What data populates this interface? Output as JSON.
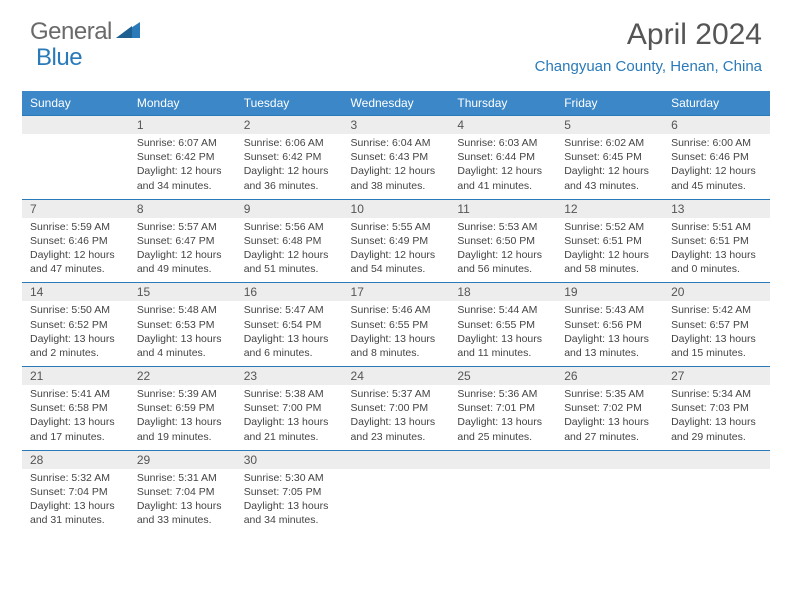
{
  "logo": {
    "general": "General",
    "blue": "Blue"
  },
  "title": "April 2024",
  "location": "Changyuan County, Henan, China",
  "colors": {
    "header_bg": "#3b87c8",
    "accent": "#2a7ab9",
    "daynum_bg": "#ededed",
    "text": "#444444",
    "title_text": "#555555"
  },
  "weekdays": [
    "Sunday",
    "Monday",
    "Tuesday",
    "Wednesday",
    "Thursday",
    "Friday",
    "Saturday"
  ],
  "days": {
    "1": {
      "sr": "6:07 AM",
      "ss": "6:42 PM",
      "dl": "12 hours and 34 minutes."
    },
    "2": {
      "sr": "6:06 AM",
      "ss": "6:42 PM",
      "dl": "12 hours and 36 minutes."
    },
    "3": {
      "sr": "6:04 AM",
      "ss": "6:43 PM",
      "dl": "12 hours and 38 minutes."
    },
    "4": {
      "sr": "6:03 AM",
      "ss": "6:44 PM",
      "dl": "12 hours and 41 minutes."
    },
    "5": {
      "sr": "6:02 AM",
      "ss": "6:45 PM",
      "dl": "12 hours and 43 minutes."
    },
    "6": {
      "sr": "6:00 AM",
      "ss": "6:46 PM",
      "dl": "12 hours and 45 minutes."
    },
    "7": {
      "sr": "5:59 AM",
      "ss": "6:46 PM",
      "dl": "12 hours and 47 minutes."
    },
    "8": {
      "sr": "5:57 AM",
      "ss": "6:47 PM",
      "dl": "12 hours and 49 minutes."
    },
    "9": {
      "sr": "5:56 AM",
      "ss": "6:48 PM",
      "dl": "12 hours and 51 minutes."
    },
    "10": {
      "sr": "5:55 AM",
      "ss": "6:49 PM",
      "dl": "12 hours and 54 minutes."
    },
    "11": {
      "sr": "5:53 AM",
      "ss": "6:50 PM",
      "dl": "12 hours and 56 minutes."
    },
    "12": {
      "sr": "5:52 AM",
      "ss": "6:51 PM",
      "dl": "12 hours and 58 minutes."
    },
    "13": {
      "sr": "5:51 AM",
      "ss": "6:51 PM",
      "dl": "13 hours and 0 minutes."
    },
    "14": {
      "sr": "5:50 AM",
      "ss": "6:52 PM",
      "dl": "13 hours and 2 minutes."
    },
    "15": {
      "sr": "5:48 AM",
      "ss": "6:53 PM",
      "dl": "13 hours and 4 minutes."
    },
    "16": {
      "sr": "5:47 AM",
      "ss": "6:54 PM",
      "dl": "13 hours and 6 minutes."
    },
    "17": {
      "sr": "5:46 AM",
      "ss": "6:55 PM",
      "dl": "13 hours and 8 minutes."
    },
    "18": {
      "sr": "5:44 AM",
      "ss": "6:55 PM",
      "dl": "13 hours and 11 minutes."
    },
    "19": {
      "sr": "5:43 AM",
      "ss": "6:56 PM",
      "dl": "13 hours and 13 minutes."
    },
    "20": {
      "sr": "5:42 AM",
      "ss": "6:57 PM",
      "dl": "13 hours and 15 minutes."
    },
    "21": {
      "sr": "5:41 AM",
      "ss": "6:58 PM",
      "dl": "13 hours and 17 minutes."
    },
    "22": {
      "sr": "5:39 AM",
      "ss": "6:59 PM",
      "dl": "13 hours and 19 minutes."
    },
    "23": {
      "sr": "5:38 AM",
      "ss": "7:00 PM",
      "dl": "13 hours and 21 minutes."
    },
    "24": {
      "sr": "5:37 AM",
      "ss": "7:00 PM",
      "dl": "13 hours and 23 minutes."
    },
    "25": {
      "sr": "5:36 AM",
      "ss": "7:01 PM",
      "dl": "13 hours and 25 minutes."
    },
    "26": {
      "sr": "5:35 AM",
      "ss": "7:02 PM",
      "dl": "13 hours and 27 minutes."
    },
    "27": {
      "sr": "5:34 AM",
      "ss": "7:03 PM",
      "dl": "13 hours and 29 minutes."
    },
    "28": {
      "sr": "5:32 AM",
      "ss": "7:04 PM",
      "dl": "13 hours and 31 minutes."
    },
    "29": {
      "sr": "5:31 AM",
      "ss": "7:04 PM",
      "dl": "13 hours and 33 minutes."
    },
    "30": {
      "sr": "5:30 AM",
      "ss": "7:05 PM",
      "dl": "13 hours and 34 minutes."
    }
  },
  "labels": {
    "sunrise": "Sunrise:",
    "sunset": "Sunset:",
    "daylight": "Daylight:"
  },
  "layout": {
    "start_weekday": 1,
    "num_days": 30,
    "cols": 7
  }
}
